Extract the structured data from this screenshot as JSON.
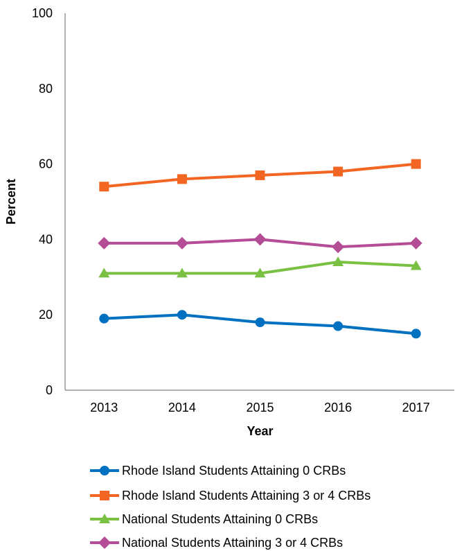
{
  "chart_data": {
    "type": "line",
    "xlabel": "Year",
    "ylabel": "Percent",
    "categories": [
      "2013",
      "2014",
      "2015",
      "2016",
      "2017"
    ],
    "ylim": [
      0,
      100
    ],
    "yticks": [
      "0",
      "20",
      "40",
      "60",
      "80",
      "100"
    ],
    "grid": false,
    "legend_position": "bottom",
    "series": [
      {
        "name": "Rhode Island Students Attaining 0 CRBs",
        "values": [
          19,
          20,
          18,
          17,
          15
        ],
        "color": "#0070c0",
        "marker": "circle"
      },
      {
        "name": "Rhode Island Students Attaining 3 or 4 CRBs",
        "values": [
          54,
          56,
          57,
          58,
          60
        ],
        "color": "#f26522",
        "marker": "square"
      },
      {
        "name": "National Students Attaining 0 CRBs",
        "values": [
          31,
          31,
          31,
          34,
          33
        ],
        "color": "#7ac143",
        "marker": "triangle"
      },
      {
        "name": "National Students Attaining 3 or 4 CRBs",
        "values": [
          39,
          39,
          40,
          38,
          39
        ],
        "color": "#b44c96",
        "marker": "diamond"
      }
    ]
  }
}
